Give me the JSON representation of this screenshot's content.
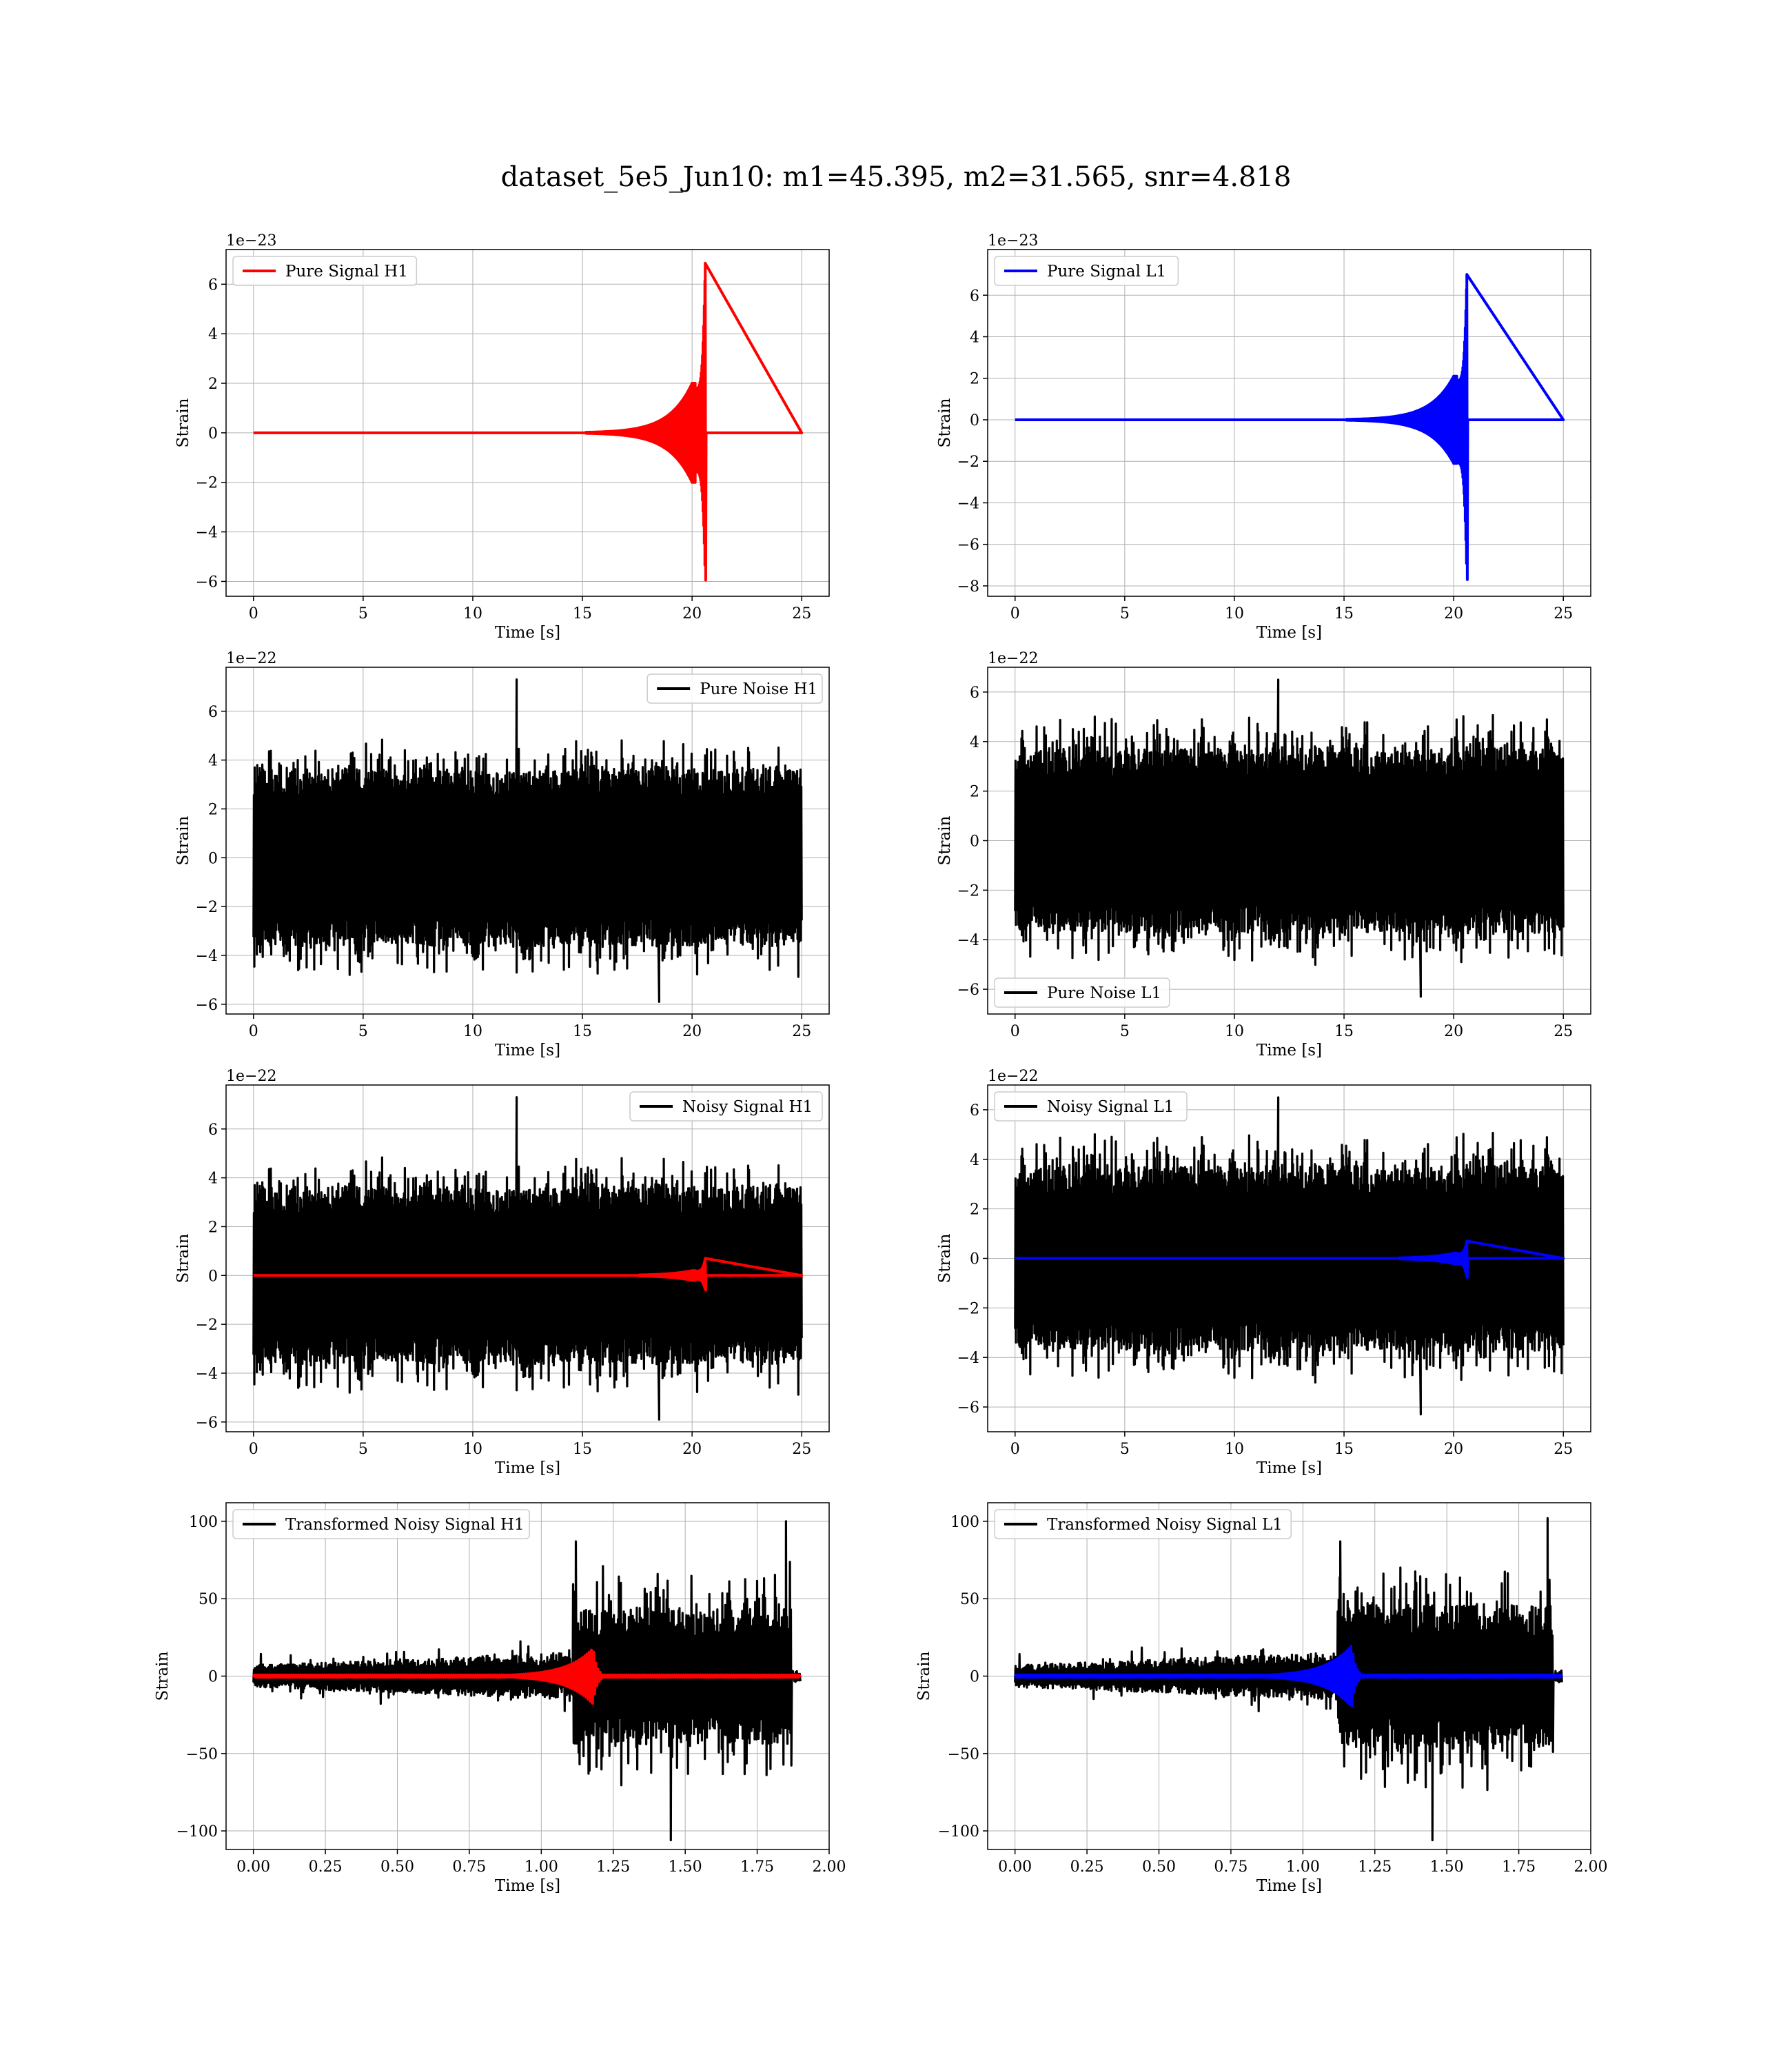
{
  "figure_title": "dataset_5e5_Jun10: m1=45.395, m2=31.565, snr=4.818",
  "colors": {
    "h1": "#ff0000",
    "l1": "#0000ff",
    "noise": "#000000"
  },
  "chart_data": [
    {
      "type": "line",
      "panel": "pure-signal-h1",
      "xlabel": "Time [s]",
      "ylabel": "Strain",
      "offset_text": "1e−23",
      "xlim": [
        -1.25,
        26.25
      ],
      "ylim": [
        -6.6,
        7.4
      ],
      "xticks": [
        0,
        5,
        10,
        15,
        20,
        25
      ],
      "xtick_labels": [
        "0",
        "5",
        "10",
        "15",
        "20",
        "25"
      ],
      "yticks": [
        -6,
        -4,
        -2,
        0,
        2,
        4,
        6
      ],
      "ytick_labels": [
        "−6",
        "−4",
        "−2",
        "0",
        "2",
        "4",
        "6"
      ],
      "legend": {
        "loc": "upper-left"
      },
      "series": [
        {
          "name": "Pure Signal H1",
          "color": "#ff0000",
          "kind": "chirp",
          "t0": 0,
          "t1": 25,
          "tm": 20.6,
          "amp": 2.0,
          "peak_pos": 6.85,
          "peak_neg": -5.95
        }
      ]
    },
    {
      "type": "line",
      "panel": "pure-signal-l1",
      "xlabel": "Time [s]",
      "ylabel": "Strain",
      "offset_text": "1e−23",
      "xlim": [
        -1.25,
        26.25
      ],
      "ylim": [
        -8.5,
        8.2
      ],
      "xticks": [
        0,
        5,
        10,
        15,
        20,
        25
      ],
      "xtick_labels": [
        "0",
        "5",
        "10",
        "15",
        "20",
        "25"
      ],
      "yticks": [
        -8,
        -6,
        -4,
        -2,
        0,
        2,
        4,
        6
      ],
      "ytick_labels": [
        "−8",
        "−6",
        "−4",
        "−2",
        "0",
        "2",
        "4",
        "6"
      ],
      "legend": {
        "loc": "upper-left"
      },
      "series": [
        {
          "name": "Pure Signal L1",
          "color": "#0000ff",
          "kind": "chirp",
          "t0": 0,
          "t1": 25,
          "tm": 20.6,
          "amp": 2.1,
          "peak_pos": 7.0,
          "peak_neg": -7.7
        }
      ]
    },
    {
      "type": "line",
      "panel": "pure-noise-h1",
      "xlabel": "Time [s]",
      "ylabel": "Strain",
      "offset_text": "1e−22",
      "xlim": [
        -1.25,
        26.25
      ],
      "ylim": [
        -6.4,
        7.8
      ],
      "xticks": [
        0,
        5,
        10,
        15,
        20,
        25
      ],
      "xtick_labels": [
        "0",
        "5",
        "10",
        "15",
        "20",
        "25"
      ],
      "yticks": [
        -6,
        -4,
        -2,
        0,
        2,
        4,
        6
      ],
      "ytick_labels": [
        "−6",
        "−4",
        "−2",
        "0",
        "2",
        "4",
        "6"
      ],
      "legend": {
        "loc": "upper-right"
      },
      "series": [
        {
          "name": "Pure Noise H1",
          "color": "#000000",
          "kind": "noise",
          "t0": 0,
          "t1": 25,
          "core": 3.3,
          "spike": 1.4,
          "max": 7.3,
          "min": -5.9,
          "seed": 11
        }
      ]
    },
    {
      "type": "line",
      "panel": "pure-noise-l1",
      "xlabel": "Time [s]",
      "ylabel": "Strain",
      "offset_text": "1e−22",
      "xlim": [
        -1.25,
        26.25
      ],
      "ylim": [
        -7.0,
        7.0
      ],
      "xticks": [
        0,
        5,
        10,
        15,
        20,
        25
      ],
      "xtick_labels": [
        "0",
        "5",
        "10",
        "15",
        "20",
        "25"
      ],
      "yticks": [
        -6,
        -4,
        -2,
        0,
        2,
        4,
        6
      ],
      "ytick_labels": [
        "−6",
        "−4",
        "−2",
        "0",
        "2",
        "4",
        "6"
      ],
      "legend": {
        "loc": "lower-left"
      },
      "series": [
        {
          "name": "Pure Noise L1",
          "color": "#000000",
          "kind": "noise",
          "t0": 0,
          "t1": 25,
          "core": 3.4,
          "spike": 1.4,
          "max": 6.5,
          "min": -6.3,
          "seed": 23
        }
      ]
    },
    {
      "type": "line",
      "panel": "noisy-signal-h1",
      "xlabel": "Time [s]",
      "ylabel": "Strain",
      "offset_text": "1e−22",
      "xlim": [
        -1.25,
        26.25
      ],
      "ylim": [
        -6.4,
        7.8
      ],
      "xticks": [
        0,
        5,
        10,
        15,
        20,
        25
      ],
      "xtick_labels": [
        "0",
        "5",
        "10",
        "15",
        "20",
        "25"
      ],
      "yticks": [
        -6,
        -4,
        -2,
        0,
        2,
        4,
        6
      ],
      "ytick_labels": [
        "−6",
        "−4",
        "−2",
        "0",
        "2",
        "4",
        "6"
      ],
      "legend": {
        "loc": "upper-right"
      },
      "series": [
        {
          "name": "Noisy Signal H1",
          "color": "#000000",
          "kind": "noise",
          "t0": 0,
          "t1": 25,
          "core": 3.3,
          "spike": 1.4,
          "max": 7.3,
          "min": -5.9,
          "seed": 11
        },
        {
          "color": "#ff0000",
          "kind": "chirp",
          "t0": 0,
          "t1": 25,
          "tm": 20.6,
          "amp": 0.2,
          "peak_pos": 0.7,
          "peak_neg": -0.6
        }
      ]
    },
    {
      "type": "line",
      "panel": "noisy-signal-l1",
      "xlabel": "Time [s]",
      "ylabel": "Strain",
      "offset_text": "1e−22",
      "xlim": [
        -1.25,
        26.25
      ],
      "ylim": [
        -7.0,
        7.0
      ],
      "xticks": [
        0,
        5,
        10,
        15,
        20,
        25
      ],
      "xtick_labels": [
        "0",
        "5",
        "10",
        "15",
        "20",
        "25"
      ],
      "yticks": [
        -6,
        -4,
        -2,
        0,
        2,
        4,
        6
      ],
      "ytick_labels": [
        "−6",
        "−4",
        "−2",
        "0",
        "2",
        "4",
        "6"
      ],
      "legend": {
        "loc": "upper-left"
      },
      "series": [
        {
          "name": "Noisy Signal L1",
          "color": "#000000",
          "kind": "noise",
          "t0": 0,
          "t1": 25,
          "core": 3.4,
          "spike": 1.4,
          "max": 6.5,
          "min": -6.3,
          "seed": 23
        },
        {
          "color": "#0000ff",
          "kind": "chirp",
          "t0": 0,
          "t1": 25,
          "tm": 20.6,
          "amp": 0.21,
          "peak_pos": 0.7,
          "peak_neg": -0.77
        }
      ]
    },
    {
      "type": "line",
      "panel": "transformed-noisy-signal-h1",
      "xlabel": "Time [s]",
      "ylabel": "Strain",
      "offset_text": "",
      "xlim": [
        -0.095,
        2.0
      ],
      "ylim": [
        -112,
        112
      ],
      "xticks": [
        0,
        0.25,
        0.5,
        0.75,
        1.0,
        1.25,
        1.5,
        1.75,
        2.0
      ],
      "xtick_labels": [
        "0.00",
        "0.25",
        "0.50",
        "0.75",
        "1.00",
        "1.25",
        "1.50",
        "1.75",
        "2.00"
      ],
      "yticks": [
        -100,
        -50,
        0,
        50,
        100
      ],
      "ytick_labels": [
        "−100",
        "−50",
        "0",
        "50",
        "100"
      ],
      "legend": {
        "loc": "upper-left"
      },
      "series": [
        {
          "name": "Transformed Noisy Signal H1",
          "color": "#000000",
          "kind": "transformed",
          "t0": 0,
          "t1": 1.9,
          "tstep": 1.11,
          "tend": 1.87,
          "low": 5,
          "high": 40,
          "max": 100,
          "min": -106,
          "seed": 37
        },
        {
          "color": "#ff0000",
          "kind": "burst",
          "t0": 0,
          "t1": 1.9,
          "tm": 1.18,
          "peak": 18
        }
      ]
    },
    {
      "type": "line",
      "panel": "transformed-noisy-signal-l1",
      "xlabel": "Time [s]",
      "ylabel": "Strain",
      "offset_text": "",
      "xlim": [
        -0.095,
        2.0
      ],
      "ylim": [
        -112,
        112
      ],
      "xticks": [
        0,
        0.25,
        0.5,
        0.75,
        1.0,
        1.25,
        1.5,
        1.75,
        2.0
      ],
      "xtick_labels": [
        "0.00",
        "0.25",
        "0.50",
        "0.75",
        "1.00",
        "1.25",
        "1.50",
        "1.75",
        "2.00"
      ],
      "yticks": [
        -100,
        -50,
        0,
        50,
        100
      ],
      "ytick_labels": [
        "−100",
        "−50",
        "0",
        "50",
        "100"
      ],
      "legend": {
        "loc": "upper-left"
      },
      "series": [
        {
          "name": "Transformed Noisy Signal L1",
          "color": "#000000",
          "kind": "transformed",
          "t0": 0,
          "t1": 1.9,
          "tstep": 1.12,
          "tend": 1.87,
          "low": 5,
          "high": 42,
          "max": 102,
          "min": -106,
          "seed": 41
        },
        {
          "color": "#0000ff",
          "kind": "burst",
          "t0": 0,
          "t1": 1.9,
          "tm": 1.17,
          "peak": 20
        }
      ]
    }
  ]
}
